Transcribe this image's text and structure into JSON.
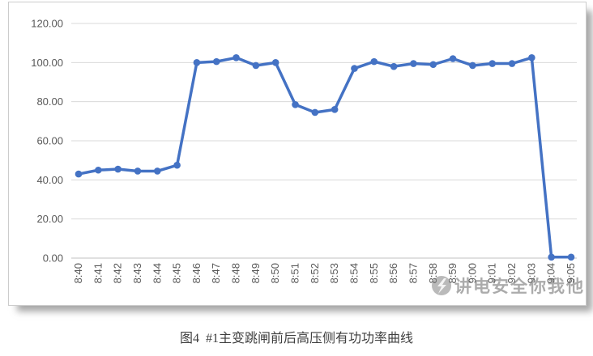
{
  "caption": {
    "text": "图4  #1主变跳闸前后高压侧有功功率曲线"
  },
  "watermark": {
    "text": "讲电安全你我他",
    "logo": "lightning-circle-logo"
  },
  "colors": {
    "line": "#4472c4",
    "grid": "#d9d9d9",
    "axis_line": "#c0c0c0",
    "axis_text": "#595959",
    "caption_text": "#3f3f3f",
    "watermark": "#5a5a5a",
    "frame_border": "#cccccc",
    "background": "#ffffff"
  },
  "chart_data": {
    "type": "line",
    "title": "",
    "xlabel": "",
    "ylabel": "",
    "legend": "none",
    "grid": "horizontal",
    "marker": "circle",
    "ylim": [
      0,
      120
    ],
    "y_ticks": [
      0,
      20,
      40,
      60,
      80,
      100,
      120
    ],
    "y_tick_labels": [
      "0.00",
      "20.00",
      "40.00",
      "60.00",
      "80.00",
      "100.00",
      "120.00"
    ],
    "categories": [
      "8:40",
      "8:41",
      "8:42",
      "8:43",
      "8:44",
      "8:45",
      "8:46",
      "8:47",
      "8:48",
      "8:49",
      "8:50",
      "8:51",
      "8:52",
      "8:53",
      "8:54",
      "8:55",
      "8:56",
      "8:57",
      "8:58",
      "8:59",
      "9:00",
      "9:01",
      "9:02",
      "9:03",
      "9:04",
      "9:05"
    ],
    "values": [
      43,
      45,
      45.5,
      44.5,
      44.5,
      47.5,
      100,
      100.5,
      102.5,
      98.5,
      100,
      78.5,
      74.5,
      76,
      97,
      100.5,
      98,
      99.5,
      99,
      102,
      98.5,
      99.5,
      99.5,
      102.5,
      0.5,
      0.5
    ]
  }
}
